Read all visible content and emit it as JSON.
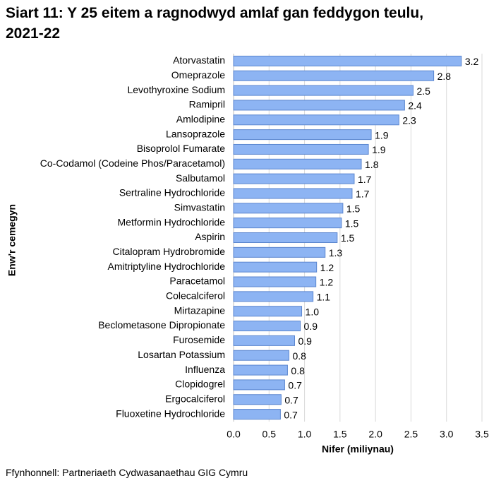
{
  "chart_data": {
    "type": "bar",
    "orientation": "horizontal",
    "title": "Siart 11: Y 25 eitem a ragnodwyd amlaf gan feddygon teulu, 2021-22",
    "xlabel": "Nifer (miliynau)",
    "ylabel": "Enw'r cemegyn",
    "source": "Ffynhonnell: Partneriaeth Cydwasanaethau GIG Cymru",
    "categories": [
      "Atorvastatin",
      "Omeprazole",
      "Levothyroxine Sodium",
      "Ramipril",
      "Amlodipine",
      "Lansoprazole",
      "Bisoprolol Fumarate",
      "Co-Codamol (Codeine Phos/Paracetamol)",
      "Salbutamol",
      "Sertraline Hydrochloride",
      "Simvastatin",
      "Metformin Hydrochloride",
      "Aspirin",
      "Citalopram Hydrobromide",
      "Amitriptyline Hydrochloride",
      "Paracetamol",
      "Colecalciferol",
      "Mirtazapine",
      "Beclometasone Dipropionate",
      "Furosemide",
      "Losartan Potassium",
      "Influenza",
      "Clopidogrel",
      "Ergocalciferol",
      "Fluoxetine Hydrochloride"
    ],
    "values": [
      3.21,
      2.82,
      2.53,
      2.41,
      2.33,
      1.94,
      1.9,
      1.8,
      1.7,
      1.67,
      1.54,
      1.52,
      1.46,
      1.29,
      1.17,
      1.16,
      1.12,
      0.96,
      0.94,
      0.86,
      0.78,
      0.76,
      0.72,
      0.67,
      0.66
    ],
    "value_labels": [
      "3.2",
      "2.8",
      "2.5",
      "2.4",
      "2.3",
      "1.9",
      "1.9",
      "1.8",
      "1.7",
      "1.7",
      "1.5",
      "1.5",
      "1.5",
      "1.3",
      "1.2",
      "1.2",
      "1.1",
      "1.0",
      "0.9",
      "0.9",
      "0.8",
      "0.8",
      "0.7",
      "0.7",
      "0.7"
    ],
    "color": "#8db4f3",
    "xlim": [
      0,
      3.5
    ],
    "xticks": [
      {
        "value": 0,
        "label": "0.0"
      },
      0.5,
      {
        "value": 1,
        "label": "1.0"
      },
      1.5,
      {
        "value": 2,
        "label": "2.0"
      },
      2.5,
      {
        "value": 3,
        "label": "3.0"
      },
      3.5
    ],
    "grid": true
  }
}
